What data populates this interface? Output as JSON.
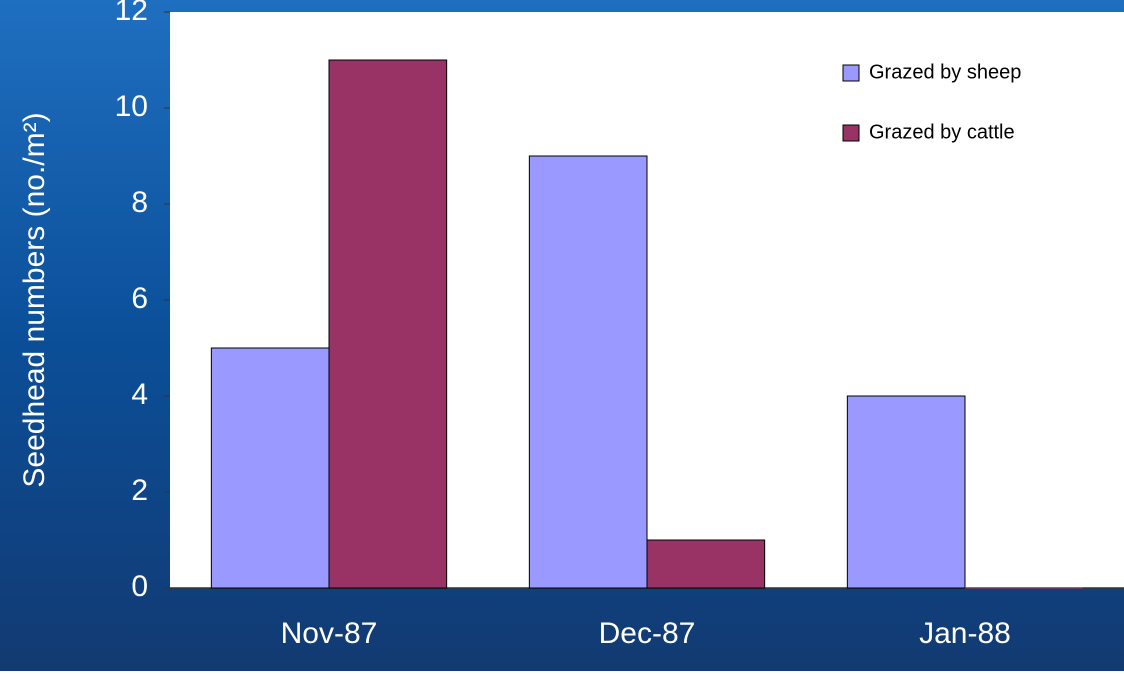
{
  "chart_data": {
    "type": "bar",
    "y_label": "Seedhead numbers (no./m²)",
    "categories": [
      "Nov-87",
      "Dec-87",
      "Jan-88"
    ],
    "series": [
      {
        "name": "Grazed by sheep",
        "color": "#9999ff",
        "values": [
          5,
          9,
          4
        ]
      },
      {
        "name": "Grazed by cattle",
        "color": "#993366",
        "values": [
          11,
          1,
          0
        ]
      }
    ],
    "ylim": [
      0,
      12
    ],
    "yticks": [
      0,
      2,
      4,
      6,
      8,
      10,
      12
    ],
    "grid": false,
    "legend": "top-right"
  }
}
